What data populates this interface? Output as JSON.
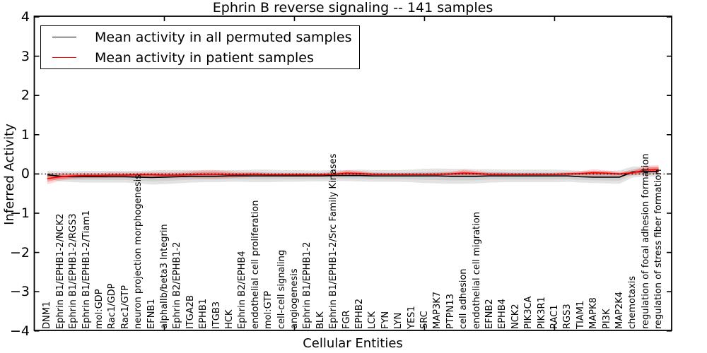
{
  "chart_data": {
    "type": "line",
    "title": "Ephrin B reverse signaling -- 141 samples",
    "xlabel": "Cellular Entities",
    "ylabel": "Inferred Activity",
    "ylim": [
      -4,
      4
    ],
    "yticks": [
      4,
      3,
      2,
      1,
      0,
      -1,
      -2,
      -3,
      -4
    ],
    "x_major_ticks": [
      10,
      20,
      30,
      40
    ],
    "grid": false,
    "zero_reference_line": "dotted",
    "legend_position": "upper left",
    "categories": [
      "DNM1",
      "Ephrin B1/EPHB1-2/NCK2",
      "Ephrin B1/EPHB1-2/RGS3",
      "Ephrin B1/EPHB1-2/Tiam1",
      "mol:GDP",
      "Rac1/GDP",
      "Rac1/GTP",
      "neuron projection morphogenesis",
      "EFNB1",
      "alphaIIb/beta3 Integrin",
      "Ephrin B2/EPHB1-2",
      "ITGA2B",
      "EPHB1",
      "ITGB3",
      "HCK",
      "Ephrin B2/EPHB4",
      "endothelial cell proliferation",
      "mol:GTP",
      "cell-cell signaling",
      "angiogenesis",
      "Ephrin B1/EPHB1-2",
      "BLK",
      "Ephrin B1/EPHB1-2/Src Family Kinases",
      "FGR",
      "EPHB2",
      "LCK",
      "FYN",
      "LYN",
      "YES1",
      "SRC",
      "MAP3K7",
      "PTPN13",
      "cell adhesion",
      "endothelial cell migration",
      "EFNB2",
      "EPHB4",
      "NCK2",
      "PIK3CA",
      "PIK3R1",
      "RAC1",
      "RGS3",
      "TIAM1",
      "MAPK8",
      "PI3K",
      "MAP2K4",
      "chemotaxis",
      "regulation of focal adhesion formation",
      "regulation of stress fiber formation"
    ],
    "series": [
      {
        "name": "Mean activity in all permuted samples",
        "color": "#000000",
        "band_outer_fill": "rgba(0,0,0,0.11)",
        "band_inner_fill": "rgba(0,0,0,0.08)",
        "values": [
          -0.02,
          -0.06,
          -0.07,
          -0.07,
          -0.07,
          -0.07,
          -0.07,
          -0.08,
          -0.09,
          -0.08,
          -0.07,
          -0.06,
          -0.06,
          -0.06,
          -0.05,
          -0.05,
          -0.05,
          -0.05,
          -0.05,
          -0.05,
          -0.05,
          -0.05,
          -0.04,
          -0.04,
          -0.04,
          -0.05,
          -0.05,
          -0.05,
          -0.05,
          -0.05,
          -0.05,
          -0.06,
          -0.06,
          -0.06,
          -0.05,
          -0.05,
          -0.05,
          -0.05,
          -0.05,
          -0.05,
          -0.05,
          -0.07,
          -0.08,
          -0.08,
          -0.08,
          0.05,
          0.06,
          0.06
        ],
        "band_halfwidth": [
          0.1,
          0.13,
          0.14,
          0.15,
          0.15,
          0.15,
          0.15,
          0.16,
          0.18,
          0.18,
          0.17,
          0.16,
          0.15,
          0.15,
          0.15,
          0.15,
          0.16,
          0.16,
          0.15,
          0.15,
          0.14,
          0.14,
          0.14,
          0.14,
          0.15,
          0.15,
          0.15,
          0.15,
          0.16,
          0.18,
          0.19,
          0.19,
          0.19,
          0.18,
          0.17,
          0.16,
          0.16,
          0.16,
          0.16,
          0.16,
          0.15,
          0.15,
          0.15,
          0.16,
          0.17,
          0.14,
          0.13,
          0.13
        ]
      },
      {
        "name": "Mean activity in patient samples",
        "color": "#ff0000",
        "band_outer_fill": "rgba(255,0,0,0.16)",
        "band_inner_fill": "rgba(255,0,0,0.27)",
        "values": [
          -0.12,
          -0.07,
          -0.05,
          -0.04,
          -0.04,
          -0.03,
          -0.03,
          -0.02,
          -0.02,
          -0.03,
          -0.03,
          -0.02,
          -0.01,
          -0.01,
          -0.02,
          -0.02,
          -0.01,
          -0.02,
          -0.02,
          -0.02,
          -0.02,
          -0.02,
          -0.01,
          0.02,
          0.01,
          -0.01,
          -0.01,
          -0.01,
          -0.01,
          -0.01,
          -0.01,
          0.0,
          0.02,
          0.01,
          -0.01,
          -0.01,
          -0.01,
          -0.01,
          -0.01,
          -0.01,
          0.0,
          0.01,
          0.03,
          0.02,
          0.0,
          0.03,
          0.1,
          0.11
        ],
        "band_halfwidth": [
          0.14,
          0.1,
          0.08,
          0.07,
          0.07,
          0.07,
          0.07,
          0.06,
          0.07,
          0.08,
          0.08,
          0.09,
          0.11,
          0.11,
          0.09,
          0.07,
          0.06,
          0.05,
          0.05,
          0.05,
          0.05,
          0.05,
          0.06,
          0.08,
          0.07,
          0.05,
          0.04,
          0.04,
          0.04,
          0.04,
          0.05,
          0.06,
          0.09,
          0.07,
          0.05,
          0.05,
          0.04,
          0.04,
          0.04,
          0.04,
          0.05,
          0.06,
          0.09,
          0.07,
          0.05,
          0.07,
          0.11,
          0.11
        ]
      }
    ]
  }
}
